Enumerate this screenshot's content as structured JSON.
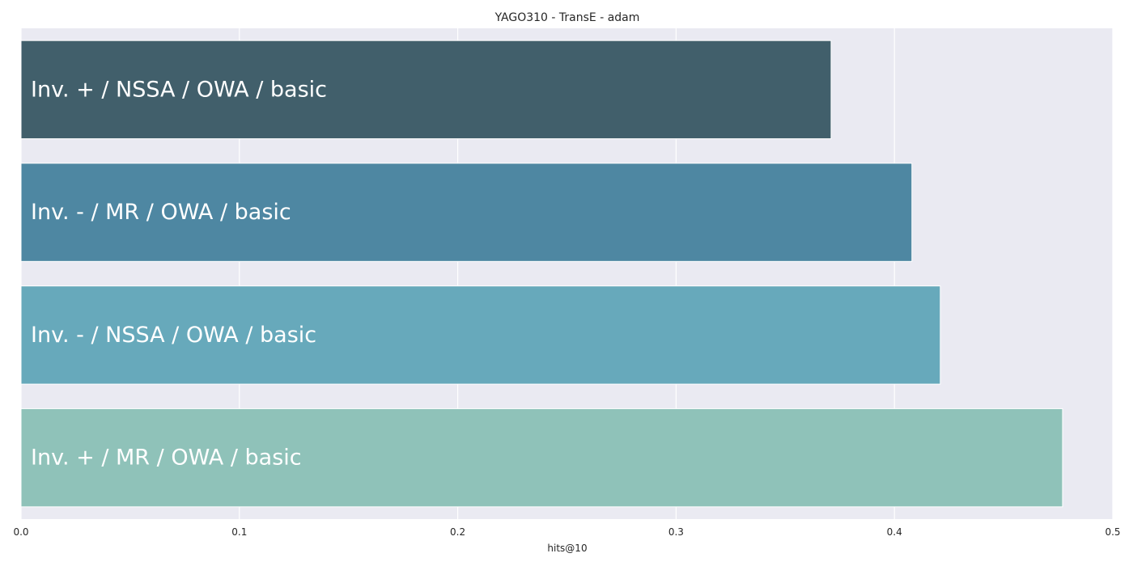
{
  "chart_data": {
    "type": "bar",
    "orientation": "horizontal",
    "title": "YAGO310 - TransE - adam",
    "xlabel": "hits@10",
    "ylabel": "",
    "xlim": [
      0.0,
      0.5
    ],
    "xticks": [
      0.0,
      0.1,
      0.2,
      0.3,
      0.4,
      0.5
    ],
    "xtick_labels": [
      "0.0",
      "0.1",
      "0.2",
      "0.3",
      "0.4",
      "0.5"
    ],
    "grid": true,
    "categories": [
      "Inv. + / NSSA / OWA / basic",
      "Inv. - / MR / OWA / basic",
      "Inv. - / NSSA / OWA / basic",
      "Inv. + / MR / OWA / basic"
    ],
    "values": [
      0.371,
      0.408,
      0.421,
      0.477
    ],
    "colors": [
      "#415f6b",
      "#4e87a2",
      "#67a9bb",
      "#8fc2b9"
    ],
    "background_color": "#eaeaf2",
    "grid_color": "#ffffff"
  }
}
